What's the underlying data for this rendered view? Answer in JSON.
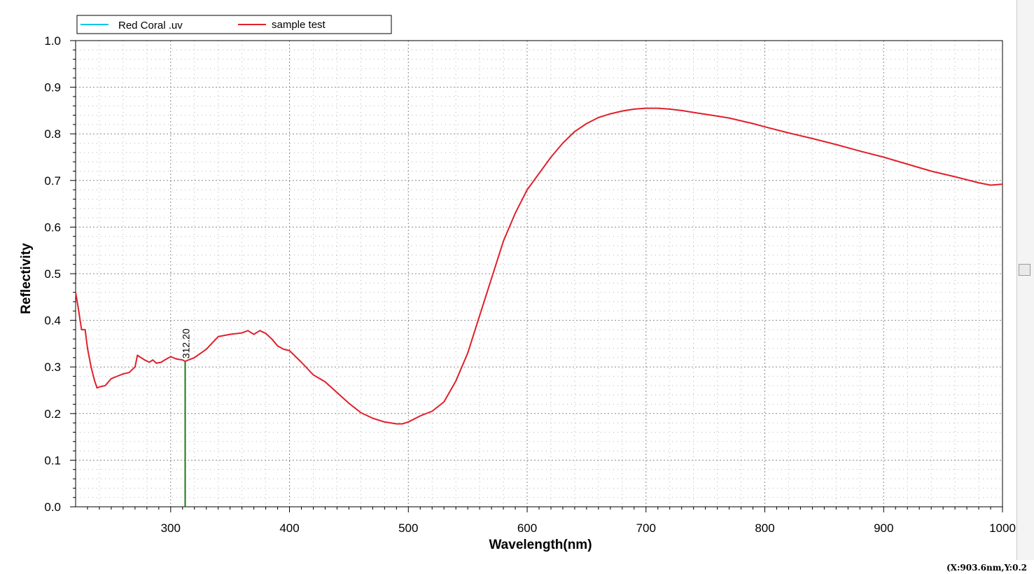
{
  "chart_data": {
    "type": "line",
    "xlabel": "Wavelength(nm)",
    "ylabel": "Reflectivity",
    "xlim": [
      220,
      1000
    ],
    "ylim": [
      0,
      1
    ],
    "x_ticks": [
      300,
      400,
      500,
      600,
      700,
      800,
      900,
      1000
    ],
    "x_tick_labels": [
      "300",
      "400",
      "500",
      "600",
      "700",
      "800",
      "900",
      "1000"
    ],
    "y_ticks": [
      0,
      0.1,
      0.2,
      0.3,
      0.4,
      0.5,
      0.6,
      0.7,
      0.8,
      0.9,
      1.0
    ],
    "y_tick_labels": [
      "0.0",
      "0.1",
      "0.2",
      "0.3",
      "0.4",
      "0.5",
      "0.6",
      "0.7",
      "0.8",
      "0.9",
      "1.0"
    ],
    "grid": true,
    "legend_position": "top-left",
    "legend": [
      {
        "name": "Red Coral .uv",
        "color": "#00c8e6"
      },
      {
        "name": "sample test",
        "color": "#e0202a"
      }
    ],
    "series": [
      {
        "name": "Red Coral .uv",
        "color": "#00c8e6",
        "x": [],
        "y": []
      },
      {
        "name": "sample test",
        "color": "#e0202a",
        "x": [
          220,
          222,
          225,
          228,
          230,
          233,
          236,
          238,
          240,
          245,
          250,
          255,
          260,
          265,
          270,
          272,
          275,
          278,
          282,
          285,
          288,
          292,
          295,
          300,
          305,
          310,
          312,
          315,
          320,
          330,
          340,
          350,
          360,
          365,
          370,
          375,
          380,
          385,
          390,
          395,
          400,
          410,
          420,
          430,
          440,
          450,
          460,
          470,
          480,
          490,
          495,
          500,
          510,
          520,
          530,
          540,
          550,
          560,
          570,
          580,
          590,
          600,
          610,
          620,
          630,
          640,
          650,
          660,
          670,
          680,
          690,
          700,
          710,
          720,
          730,
          740,
          750,
          760,
          770,
          780,
          790,
          800,
          820,
          840,
          860,
          880,
          900,
          920,
          940,
          960,
          980,
          990,
          1000
        ],
        "y": [
          0.46,
          0.43,
          0.38,
          0.38,
          0.34,
          0.3,
          0.27,
          0.255,
          0.257,
          0.26,
          0.275,
          0.28,
          0.285,
          0.288,
          0.3,
          0.325,
          0.32,
          0.315,
          0.31,
          0.315,
          0.308,
          0.31,
          0.315,
          0.322,
          0.317,
          0.315,
          0.312,
          0.315,
          0.32,
          0.338,
          0.365,
          0.37,
          0.373,
          0.378,
          0.37,
          0.378,
          0.372,
          0.36,
          0.345,
          0.338,
          0.335,
          0.31,
          0.283,
          0.268,
          0.245,
          0.222,
          0.202,
          0.19,
          0.182,
          0.178,
          0.178,
          0.182,
          0.195,
          0.205,
          0.225,
          0.27,
          0.33,
          0.41,
          0.49,
          0.57,
          0.63,
          0.68,
          0.715,
          0.75,
          0.78,
          0.805,
          0.822,
          0.835,
          0.843,
          0.849,
          0.853,
          0.855,
          0.855,
          0.853,
          0.85,
          0.846,
          0.842,
          0.838,
          0.834,
          0.828,
          0.822,
          0.815,
          0.802,
          0.79,
          0.777,
          0.763,
          0.75,
          0.735,
          0.72,
          0.708,
          0.695,
          0.69,
          0.692
        ]
      }
    ],
    "marker": {
      "x": 312.2,
      "y": 0.312,
      "label": "312.20",
      "color": "#1a7a1a"
    }
  },
  "status": {
    "coordinate_readout": "(X:903.6nm,Y:0.2"
  }
}
